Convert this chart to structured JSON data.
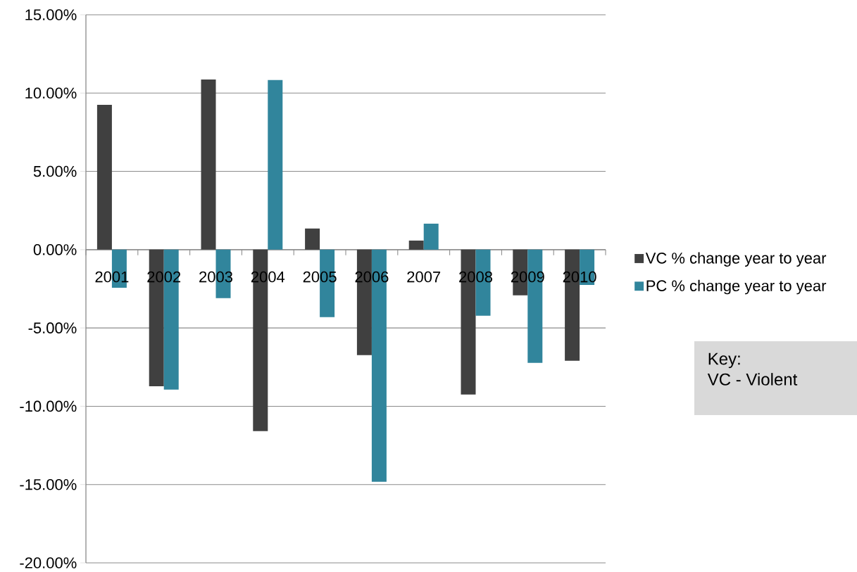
{
  "chart_data": {
    "type": "bar",
    "categories": [
      "2001",
      "2002",
      "2003",
      "2004",
      "2005",
      "2006",
      "2007",
      "2008",
      "2009",
      "2010"
    ],
    "series": [
      {
        "name": "VC % change year to year",
        "color": "#404040",
        "values": [
          9.25,
          -8.72,
          10.87,
          -11.59,
          1.35,
          -6.74,
          0.58,
          -9.25,
          -2.92,
          -7.1
        ]
      },
      {
        "name": "PC % change year to year",
        "color": "#31859c",
        "values": [
          -2.43,
          -8.94,
          -3.1,
          10.83,
          -4.31,
          -14.82,
          1.66,
          -4.22,
          -7.23,
          -2.25
        ]
      }
    ],
    "ylim": [
      -20,
      15
    ],
    "yticks": [
      {
        "value": -20,
        "label": "-20.00%"
      },
      {
        "value": -15,
        "label": "-15.00%"
      },
      {
        "value": -10,
        "label": "-10.00%"
      },
      {
        "value": -5,
        "label": "-5.00%"
      },
      {
        "value": 0,
        "label": "0.00%"
      },
      {
        "value": 5,
        "label": "5.00%"
      },
      {
        "value": 10,
        "label": "10.00%"
      },
      {
        "value": 15,
        "label": "15.00%"
      }
    ],
    "grid": "y",
    "legend": "right",
    "annotations": [
      "Key:",
      "VC - Violent"
    ]
  }
}
